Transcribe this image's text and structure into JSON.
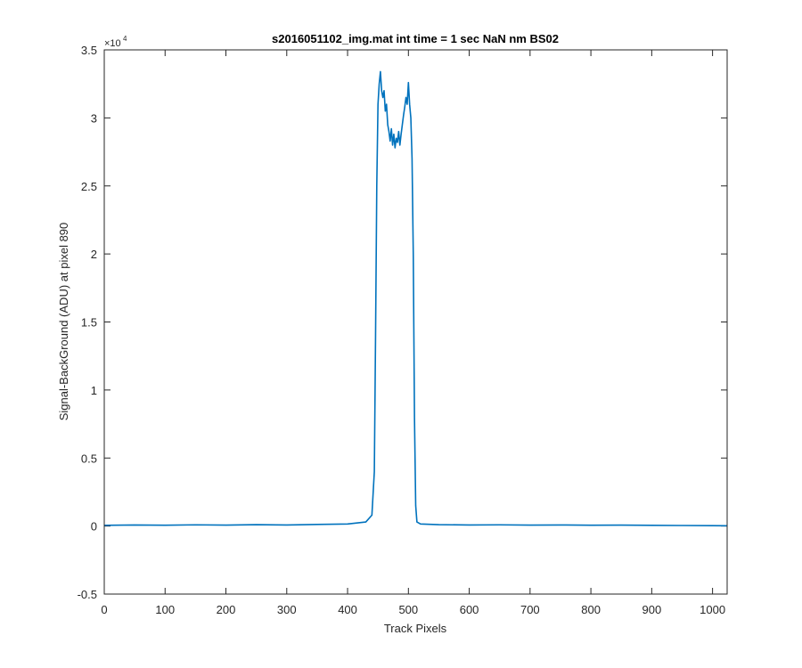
{
  "chart_data": {
    "type": "line",
    "title": "s2016051102_img.mat int time = 1 sec  NaN nm BS02",
    "xlabel": "Track Pixels",
    "ylabel": "Signal-BackGround (ADU) at pixel 890",
    "xlim": [
      0,
      1024
    ],
    "ylim": [
      -5000,
      35000
    ],
    "x_ticks": [
      0,
      100,
      200,
      300,
      400,
      500,
      600,
      700,
      800,
      900,
      1000
    ],
    "x_tick_labels": [
      "0",
      "100",
      "200",
      "300",
      "400",
      "500",
      "600",
      "700",
      "800",
      "900",
      "1000"
    ],
    "y_ticks": [
      -5000,
      0,
      5000,
      10000,
      15000,
      20000,
      25000,
      30000,
      35000
    ],
    "y_tick_labels": [
      "-0.5",
      "0",
      "0.5",
      "1",
      "1.5",
      "2",
      "2.5",
      "3",
      "3.5"
    ],
    "y_exponent_label": "×10",
    "y_exponent_power": "4",
    "grid": false,
    "box": true,
    "line_color": "#0072BD",
    "series": [
      {
        "x": [
          0,
          50,
          100,
          150,
          200,
          250,
          300,
          350,
          400,
          430,
          440,
          444,
          446,
          448,
          450,
          452,
          454,
          456,
          458,
          460,
          462,
          464,
          466,
          468,
          470,
          472,
          474,
          476,
          478,
          480,
          482,
          484,
          486,
          488,
          490,
          492,
          494,
          496,
          498,
          500,
          502,
          504,
          506,
          508,
          510,
          512,
          514,
          520,
          550,
          600,
          650,
          700,
          750,
          800,
          850,
          900,
          950,
          1000,
          1024
        ],
        "y": [
          50,
          80,
          60,
          90,
          70,
          100,
          80,
          120,
          150,
          300,
          800,
          4000,
          14000,
          25000,
          31000,
          32500,
          33400,
          32000,
          31500,
          32000,
          30500,
          31000,
          29500,
          29000,
          28300,
          29200,
          28000,
          28800,
          27800,
          28500,
          28200,
          29000,
          28000,
          28800,
          29500,
          30200,
          30800,
          31500,
          31000,
          32600,
          31000,
          30000,
          27000,
          20000,
          8000,
          1500,
          300,
          150,
          100,
          80,
          90,
          70,
          80,
          60,
          70,
          50,
          40,
          30,
          20
        ]
      }
    ]
  }
}
